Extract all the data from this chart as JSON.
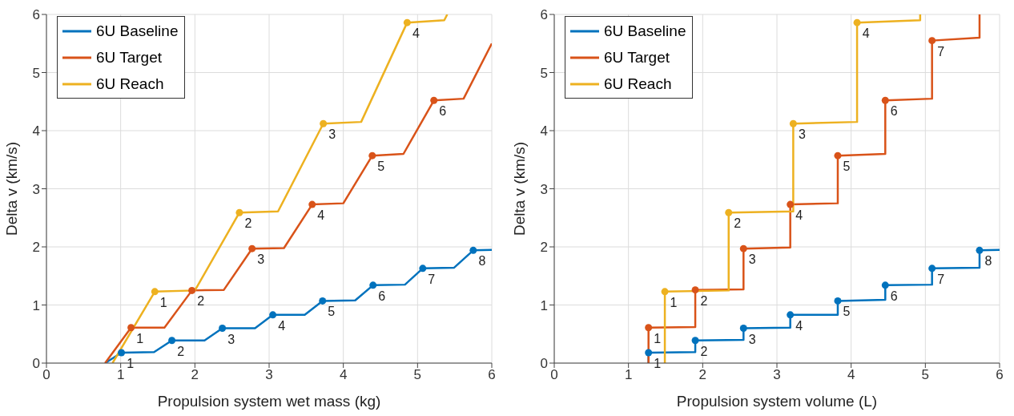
{
  "chart_data": [
    {
      "type": "line",
      "xlabel": "Propulsion system wet mass (kg)",
      "ylabel": "Delta v (km/s)",
      "xlim": [
        0,
        6
      ],
      "ylim": [
        0,
        6
      ],
      "xticks": [
        0,
        1,
        2,
        3,
        4,
        5,
        6
      ],
      "yticks": [
        0,
        1,
        2,
        3,
        4,
        5,
        6
      ],
      "grid": true,
      "legend": "top left",
      "line_style": "solid",
      "series": [
        {
          "name": "6U Baseline",
          "color": "#0072bd",
          "marker": "none",
          "x": [
            0.79,
            1.01,
            1.45,
            1.69,
            2.13,
            2.37,
            2.81,
            3.05,
            3.48,
            3.72,
            4.16,
            4.4,
            4.83,
            5.07,
            5.49,
            5.75,
            6.0
          ],
          "values": [
            0,
            0.18,
            0.19,
            0.39,
            0.39,
            0.6,
            0.6,
            0.83,
            0.83,
            1.07,
            1.08,
            1.34,
            1.35,
            1.63,
            1.64,
            1.94,
            1.95
          ]
        },
        {
          "name": "6U Target",
          "color": "#d95319",
          "marker": "none",
          "x": [
            0.79,
            1.14,
            1.59,
            1.96,
            2.39,
            2.77,
            3.2,
            3.58,
            4.0,
            4.39,
            4.81,
            5.22,
            5.62,
            6.0
          ],
          "values": [
            0,
            0.61,
            0.61,
            1.25,
            1.26,
            1.97,
            1.98,
            2.73,
            2.75,
            3.57,
            3.6,
            4.52,
            4.55,
            5.5
          ]
        },
        {
          "name": "6U Reach",
          "color": "#edb120",
          "marker": "none",
          "x": [
            0.89,
            1.46,
            2.0,
            2.6,
            3.12,
            3.73,
            4.24,
            4.86,
            5.36,
            5.4
          ],
          "values": [
            0,
            1.23,
            1.25,
            2.59,
            2.61,
            4.12,
            4.15,
            5.86,
            5.9,
            6.0
          ]
        },
        {
          "type": "scatter",
          "marker": "circle",
          "color": "#0072bd",
          "x": [
            1.01,
            1.69,
            2.37,
            3.05,
            3.72,
            4.4,
            5.07,
            5.75
          ],
          "values": [
            0.18,
            0.39,
            0.6,
            0.83,
            1.07,
            1.34,
            1.63,
            1.94
          ]
        },
        {
          "type": "scatter",
          "marker": "circle",
          "color": "#d95319",
          "x": [
            1.14,
            1.96,
            2.77,
            3.58,
            4.39,
            5.22
          ],
          "values": [
            0.61,
            1.25,
            1.97,
            2.73,
            3.57,
            4.52
          ]
        },
        {
          "type": "scatter",
          "marker": "circle",
          "color": "#edb120",
          "x": [
            1.46,
            2.6,
            3.73,
            4.86
          ],
          "values": [
            1.23,
            2.59,
            4.12,
            5.86
          ]
        }
      ],
      "annotations": [
        {
          "text": "1",
          "x": 1.01,
          "y": 0.18
        },
        {
          "text": "2",
          "x": 1.69,
          "y": 0.39
        },
        {
          "text": "3",
          "x": 2.37,
          "y": 0.6
        },
        {
          "text": "4",
          "x": 3.05,
          "y": 0.83
        },
        {
          "text": "5",
          "x": 3.72,
          "y": 1.07
        },
        {
          "text": "6",
          "x": 4.4,
          "y": 1.34
        },
        {
          "text": "7",
          "x": 5.07,
          "y": 1.63
        },
        {
          "text": "8",
          "x": 5.75,
          "y": 1.94
        },
        {
          "text": "1",
          "x": 1.14,
          "y": 0.61
        },
        {
          "text": "2",
          "x": 1.96,
          "y": 1.25
        },
        {
          "text": "3",
          "x": 2.77,
          "y": 1.97
        },
        {
          "text": "4",
          "x": 3.58,
          "y": 2.73
        },
        {
          "text": "5",
          "x": 4.39,
          "y": 3.57
        },
        {
          "text": "6",
          "x": 5.22,
          "y": 4.52
        },
        {
          "text": "1",
          "x": 1.46,
          "y": 1.23
        },
        {
          "text": "2",
          "x": 2.6,
          "y": 2.59
        },
        {
          "text": "3",
          "x": 3.73,
          "y": 4.12
        },
        {
          "text": "4",
          "x": 4.86,
          "y": 5.86
        }
      ]
    },
    {
      "type": "line",
      "xlabel": "Propulsion system volume (L)",
      "ylabel": "Delta v (km/s)",
      "xlim": [
        0,
        6
      ],
      "ylim": [
        0,
        6
      ],
      "xticks": [
        0,
        1,
        2,
        3,
        4,
        5,
        6
      ],
      "yticks": [
        0,
        1,
        2,
        3,
        4,
        5,
        6
      ],
      "grid": true,
      "legend": "top left",
      "line_style": "solid",
      "series": [
        {
          "name": "6U Baseline",
          "color": "#0072bd",
          "marker": "none",
          "x": [
            1.27,
            1.27,
            1.9,
            1.9,
            2.55,
            2.55,
            3.18,
            3.18,
            3.82,
            3.82,
            4.46,
            4.46,
            5.09,
            5.09,
            5.73,
            5.73,
            6.0
          ],
          "values": [
            0,
            0.18,
            0.19,
            0.39,
            0.4,
            0.6,
            0.61,
            0.83,
            0.83,
            1.07,
            1.09,
            1.34,
            1.35,
            1.63,
            1.64,
            1.94,
            1.95
          ]
        },
        {
          "name": "6U Target",
          "color": "#d95319",
          "marker": "none",
          "x": [
            1.27,
            1.27,
            1.9,
            1.9,
            2.55,
            2.55,
            3.18,
            3.18,
            3.82,
            3.82,
            4.46,
            4.46,
            5.09,
            5.09,
            5.73,
            5.73
          ],
          "values": [
            0,
            0.61,
            0.62,
            1.26,
            1.27,
            1.97,
            1.99,
            2.73,
            2.75,
            3.57,
            3.6,
            4.52,
            4.55,
            5.55,
            5.6,
            6.0
          ]
        },
        {
          "name": "6U Reach",
          "color": "#edb120",
          "marker": "none",
          "x": [
            1.49,
            1.49,
            2.35,
            2.35,
            3.22,
            3.22,
            4.08,
            4.08,
            4.93,
            4.93
          ],
          "values": [
            0,
            1.23,
            1.25,
            2.59,
            2.61,
            4.12,
            4.15,
            5.86,
            5.9,
            6.0
          ]
        },
        {
          "type": "scatter",
          "marker": "circle",
          "color": "#0072bd",
          "x": [
            1.27,
            1.9,
            2.55,
            3.18,
            3.82,
            4.46,
            5.09,
            5.73
          ],
          "values": [
            0.18,
            0.39,
            0.6,
            0.83,
            1.07,
            1.34,
            1.63,
            1.94
          ]
        },
        {
          "type": "scatter",
          "marker": "circle",
          "color": "#d95319",
          "x": [
            1.27,
            1.9,
            2.55,
            3.18,
            3.82,
            4.46,
            5.09
          ],
          "values": [
            0.61,
            1.26,
            1.97,
            2.73,
            3.57,
            4.52,
            5.55
          ]
        },
        {
          "type": "scatter",
          "marker": "circle",
          "color": "#edb120",
          "x": [
            1.49,
            2.35,
            3.22,
            4.08
          ],
          "values": [
            1.23,
            2.59,
            4.12,
            5.86
          ]
        }
      ],
      "annotations": [
        {
          "text": "1",
          "x": 1.27,
          "y": 0.18
        },
        {
          "text": "2",
          "x": 1.9,
          "y": 0.39
        },
        {
          "text": "3",
          "x": 2.55,
          "y": 0.6
        },
        {
          "text": "4",
          "x": 3.18,
          "y": 0.83
        },
        {
          "text": "5",
          "x": 3.82,
          "y": 1.07
        },
        {
          "text": "6",
          "x": 4.46,
          "y": 1.34
        },
        {
          "text": "7",
          "x": 5.09,
          "y": 1.63
        },
        {
          "text": "8",
          "x": 5.73,
          "y": 1.94
        },
        {
          "text": "1",
          "x": 1.27,
          "y": 0.61
        },
        {
          "text": "2",
          "x": 1.9,
          "y": 1.26
        },
        {
          "text": "3",
          "x": 2.55,
          "y": 1.97
        },
        {
          "text": "4",
          "x": 3.18,
          "y": 2.73
        },
        {
          "text": "5",
          "x": 3.82,
          "y": 3.57
        },
        {
          "text": "6",
          "x": 4.46,
          "y": 4.52
        },
        {
          "text": "7",
          "x": 5.09,
          "y": 5.55
        },
        {
          "text": "1",
          "x": 1.49,
          "y": 1.23
        },
        {
          "text": "2",
          "x": 2.35,
          "y": 2.59
        },
        {
          "text": "3",
          "x": 3.22,
          "y": 4.12
        },
        {
          "text": "4",
          "x": 4.08,
          "y": 5.86
        }
      ]
    }
  ]
}
